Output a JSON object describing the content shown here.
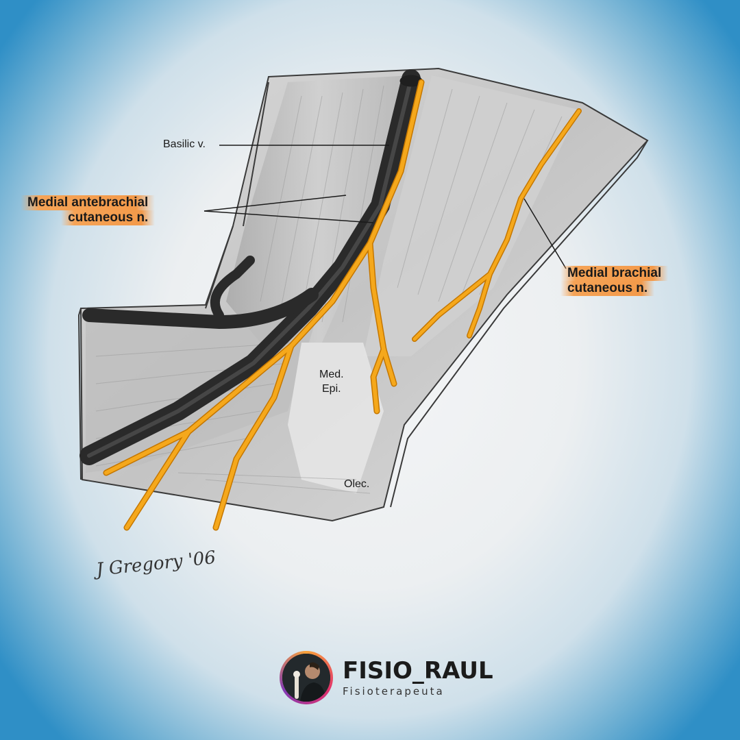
{
  "labels": {
    "basilic": "Basilic v.",
    "medial_antebrachial": [
      "Medial antebrachial",
      "cutaneous n."
    ],
    "medial_brachial": [
      "Medial brachial",
      "cutaneous n."
    ],
    "med_epi": [
      "Med.",
      "Epi."
    ],
    "olec": "Olec."
  },
  "signature": "J Gregory '06",
  "brand": {
    "name": "FISIO_RAUL",
    "role": "Fisioterapeuta"
  },
  "colors": {
    "nerve": "#f5a81c",
    "nerve_outline": "#c47600",
    "vein": "#2a2a2a",
    "highlight": "#f39a4a",
    "accent_blue": "#2f8fc6"
  }
}
